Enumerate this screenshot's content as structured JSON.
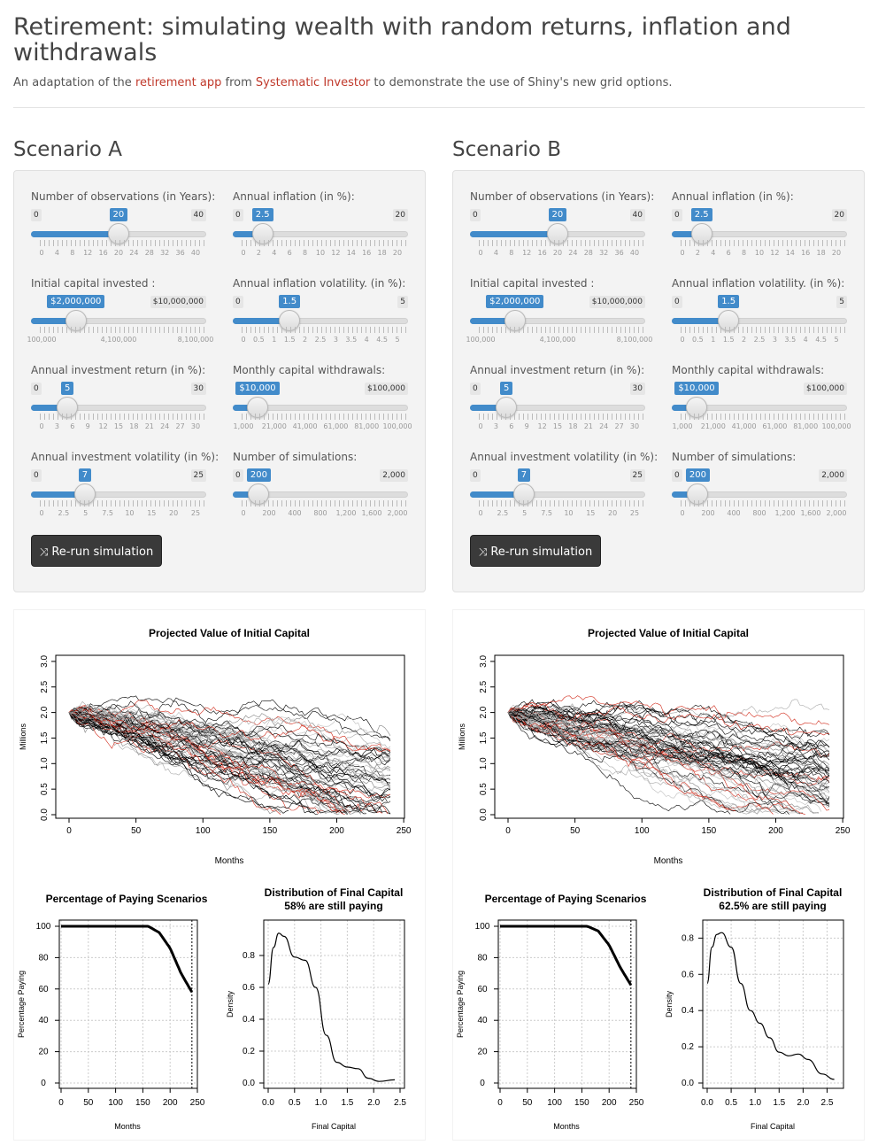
{
  "header": {
    "title": "Retirement: simulating wealth with random returns, inflation and withdrawals",
    "subtitle_prefix": "An adaptation of the ",
    "link1": "retirement app",
    "subtitle_mid": " from ",
    "link2": "Systematic Investor",
    "subtitle_suffix": " to demonstrate the use of Shiny's new grid options."
  },
  "scenarios": [
    {
      "title": "Scenario A",
      "controls": {
        "years": {
          "label": "Number of observations (in Years):",
          "min": "0",
          "max": "40",
          "value": "20",
          "fraction": 0.5,
          "ticks": [
            "0",
            "4",
            "8",
            "12",
            "16",
            "20",
            "24",
            "28",
            "32",
            "36",
            "40"
          ]
        },
        "inflation": {
          "label": "Annual inflation (in %):",
          "min": "0",
          "max": "20",
          "value": "2.5",
          "fraction": 0.125,
          "ticks": [
            "0",
            "2",
            "4",
            "6",
            "8",
            "10",
            "12",
            "14",
            "16",
            "18",
            "20"
          ]
        },
        "capital": {
          "label": "Initial capital invested :",
          "min": "",
          "max": "$10,000,000",
          "value": "$2,000,000",
          "fraction": 0.2222,
          "ticks": [
            "100,000",
            "4,100,000",
            "8,100,000"
          ]
        },
        "inflation_vol": {
          "label": "Annual inflation volatility. (in %):",
          "min": "0",
          "max": "5",
          "value": "1.5",
          "fraction": 0.3,
          "ticks": [
            "0",
            "0.5",
            "1",
            "1.5",
            "2",
            "2.5",
            "3",
            "3.5",
            "4",
            "4.5",
            "5"
          ]
        },
        "return": {
          "label": "Annual investment return (in %):",
          "min": "0",
          "max": "30",
          "value": "5",
          "fraction": 0.1667,
          "ticks": [
            "0",
            "3",
            "6",
            "9",
            "12",
            "15",
            "18",
            "21",
            "24",
            "27",
            "30"
          ]
        },
        "withdrawals": {
          "label": "Monthly capital withdrawals:",
          "min": "",
          "max": "$100,000",
          "value": "$10,000",
          "fraction": 0.0909,
          "ticks": [
            "1,000",
            "21,000",
            "41,000",
            "61,000",
            "81,000",
            "100,000"
          ]
        },
        "volatility": {
          "label": "Annual investment volatility (in %):",
          "min": "0",
          "max": "25",
          "value": "7",
          "fraction": 0.28,
          "ticks": [
            "0",
            "2.5",
            "5",
            "7.5",
            "10",
            "15",
            "20",
            "25"
          ]
        },
        "simulations": {
          "label": "Number of simulations:",
          "min": "0",
          "max": "2,000",
          "value": "200",
          "fraction": 0.1,
          "ticks": [
            "0",
            "200",
            "400",
            "800",
            "1,200",
            "1,600",
            "2,000"
          ]
        }
      },
      "button": "Re-run simulation",
      "plots": {
        "projected_title": "Projected Value of Initial Capital",
        "paying_title": "Percentage of Paying Scenarios",
        "dist_title": "Distribution of Final Capital",
        "dist_subtitle": "58% are still paying",
        "final_paying_pct": 58
      }
    },
    {
      "title": "Scenario B",
      "controls": {
        "years": {
          "label": "Number of observations (in Years):",
          "min": "0",
          "max": "40",
          "value": "20",
          "fraction": 0.5,
          "ticks": [
            "0",
            "4",
            "8",
            "12",
            "16",
            "20",
            "24",
            "28",
            "32",
            "36",
            "40"
          ]
        },
        "inflation": {
          "label": "Annual inflation (in %):",
          "min": "0",
          "max": "20",
          "value": "2.5",
          "fraction": 0.125,
          "ticks": [
            "0",
            "2",
            "4",
            "6",
            "8",
            "10",
            "12",
            "14",
            "16",
            "18",
            "20"
          ]
        },
        "capital": {
          "label": "Initial capital invested :",
          "min": "",
          "max": "$10,000,000",
          "value": "$2,000,000",
          "fraction": 0.2222,
          "ticks": [
            "100,000",
            "4,100,000",
            "8,100,000"
          ]
        },
        "inflation_vol": {
          "label": "Annual inflation volatility. (in %):",
          "min": "0",
          "max": "5",
          "value": "1.5",
          "fraction": 0.3,
          "ticks": [
            "0",
            "0.5",
            "1",
            "1.5",
            "2",
            "2.5",
            "3",
            "3.5",
            "4",
            "4.5",
            "5"
          ]
        },
        "return": {
          "label": "Annual investment return (in %):",
          "min": "0",
          "max": "30",
          "value": "5",
          "fraction": 0.1667,
          "ticks": [
            "0",
            "3",
            "6",
            "9",
            "12",
            "15",
            "18",
            "21",
            "24",
            "27",
            "30"
          ]
        },
        "withdrawals": {
          "label": "Monthly capital withdrawals:",
          "min": "",
          "max": "$100,000",
          "value": "$10,000",
          "fraction": 0.0909,
          "ticks": [
            "1,000",
            "21,000",
            "41,000",
            "61,000",
            "81,000",
            "100,000"
          ]
        },
        "volatility": {
          "label": "Annual investment volatility (in %):",
          "min": "0",
          "max": "25",
          "value": "7",
          "fraction": 0.28,
          "ticks": [
            "0",
            "2.5",
            "5",
            "7.5",
            "10",
            "15",
            "20",
            "25"
          ]
        },
        "simulations": {
          "label": "Number of simulations:",
          "min": "0",
          "max": "2,000",
          "value": "200",
          "fraction": 0.1,
          "ticks": [
            "0",
            "200",
            "400",
            "800",
            "1,200",
            "1,600",
            "2,000"
          ]
        }
      },
      "button": "Re-run simulation",
      "plots": {
        "projected_title": "Projected Value of Initial Capital",
        "paying_title": "Percentage of Paying Scenarios",
        "dist_title": "Distribution of Final Capital",
        "dist_subtitle": "62.5% are still paying",
        "final_paying_pct": 62.5
      }
    }
  ],
  "chart_data": [
    {
      "type": "line",
      "title": "Projected Value of Initial Capital",
      "xlabel": "Months",
      "ylabel": "Millions",
      "xticks": [
        0,
        50,
        100,
        150,
        200,
        250
      ],
      "yticks": [
        0.0,
        0.5,
        1.0,
        1.5,
        2.0,
        2.5,
        3.0
      ],
      "xlim": [
        0,
        250
      ],
      "ylim": [
        0,
        3.1
      ]
    },
    {
      "type": "line",
      "title": "Percentage of Paying Scenarios",
      "xlabel": "Months",
      "ylabel": "Percentage Paying",
      "xticks": [
        0,
        50,
        100,
        150,
        200,
        250
      ],
      "yticks": [
        0,
        20,
        40,
        60,
        80,
        100
      ],
      "series": [
        {
          "name": "A",
          "x": [
            0,
            160,
            180,
            200,
            220,
            240
          ],
          "values": [
            100,
            100,
            96,
            86,
            70,
            58
          ]
        },
        {
          "name": "B",
          "x": [
            0,
            160,
            180,
            200,
            220,
            240
          ],
          "values": [
            100,
            100,
            97,
            88,
            74,
            62.5
          ]
        }
      ]
    },
    {
      "type": "line",
      "title": "Distribution of Final Capital",
      "xlabel": "Final Capital",
      "ylabel": "Density",
      "series": [
        {
          "name": "A",
          "x": [
            0,
            0.1,
            0.2,
            0.3,
            0.5,
            0.7,
            0.9,
            1.1,
            1.3,
            1.5,
            1.7,
            1.9,
            2.1,
            2.4
          ],
          "values": [
            0.62,
            0.85,
            0.94,
            0.92,
            0.79,
            0.77,
            0.6,
            0.3,
            0.13,
            0.1,
            0.09,
            0.03,
            0.01,
            0.02
          ]
        },
        {
          "name": "B",
          "x": [
            0,
            0.1,
            0.2,
            0.3,
            0.5,
            0.7,
            0.9,
            1.1,
            1.3,
            1.5,
            1.7,
            1.9,
            2.1,
            2.4,
            2.65
          ],
          "values": [
            0.55,
            0.75,
            0.82,
            0.83,
            0.75,
            0.55,
            0.4,
            0.33,
            0.25,
            0.17,
            0.15,
            0.16,
            0.13,
            0.05,
            0.02
          ]
        }
      ],
      "xticks_A": [
        0.0,
        0.5,
        1.0,
        1.5,
        2.0,
        2.5
      ],
      "yticks_A": [
        0.0,
        0.2,
        0.4,
        0.6,
        0.8
      ],
      "xticks_B": [
        0.0,
        0.5,
        1.0,
        1.5,
        2.0,
        2.5
      ],
      "yticks_B": [
        0.0,
        0.2,
        0.4,
        0.6,
        0.8
      ]
    }
  ],
  "colors": {
    "accent": "#428bca",
    "link": "#c0392b",
    "button": "#3a3a3a",
    "panel": "#f3f3f3",
    "red_path": "#d12a1a"
  }
}
